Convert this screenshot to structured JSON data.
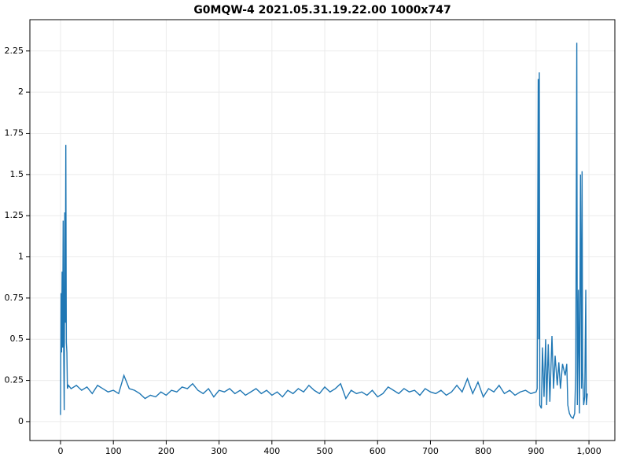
{
  "chart_data": {
    "type": "line",
    "title": "G0MQW-4 2021.05.31.19.22.00 1000x747",
    "x": [
      0,
      1,
      2,
      3,
      4,
      5,
      6,
      7,
      8,
      9,
      10,
      11,
      12,
      13,
      15,
      20,
      30,
      40,
      50,
      60,
      70,
      80,
      90,
      100,
      110,
      120,
      130,
      140,
      150,
      160,
      170,
      180,
      190,
      200,
      210,
      220,
      230,
      240,
      250,
      260,
      270,
      280,
      290,
      300,
      310,
      320,
      330,
      340,
      350,
      360,
      370,
      380,
      390,
      400,
      410,
      420,
      430,
      440,
      450,
      460,
      470,
      480,
      490,
      500,
      510,
      520,
      530,
      540,
      550,
      560,
      570,
      580,
      590,
      600,
      610,
      620,
      630,
      640,
      650,
      660,
      670,
      680,
      690,
      700,
      710,
      720,
      730,
      740,
      750,
      760,
      770,
      780,
      790,
      800,
      810,
      820,
      830,
      840,
      850,
      860,
      870,
      880,
      890,
      900,
      902,
      904,
      905,
      906,
      907,
      910,
      912,
      915,
      918,
      920,
      923,
      926,
      930,
      933,
      936,
      940,
      943,
      946,
      950,
      955,
      958,
      960,
      963,
      966,
      970,
      973,
      975,
      977,
      978,
      980,
      982,
      984,
      986,
      987,
      988,
      990,
      992,
      994,
      995,
      997
    ],
    "series": [
      {
        "color": "#1f77b4",
        "values": [
          0.04,
          0.78,
          0.42,
          0.91,
          0.45,
          1.22,
          0.42,
          0.07,
          1.27,
          0.6,
          1.68,
          0.48,
          0.42,
          0.2,
          0.22,
          0.2,
          0.22,
          0.19,
          0.21,
          0.17,
          0.22,
          0.2,
          0.18,
          0.19,
          0.17,
          0.28,
          0.2,
          0.19,
          0.17,
          0.14,
          0.16,
          0.15,
          0.18,
          0.16,
          0.19,
          0.18,
          0.21,
          0.2,
          0.23,
          0.19,
          0.17,
          0.2,
          0.15,
          0.19,
          0.18,
          0.2,
          0.17,
          0.19,
          0.16,
          0.18,
          0.2,
          0.17,
          0.19,
          0.16,
          0.18,
          0.15,
          0.19,
          0.17,
          0.2,
          0.18,
          0.22,
          0.19,
          0.17,
          0.21,
          0.18,
          0.2,
          0.23,
          0.14,
          0.19,
          0.17,
          0.18,
          0.16,
          0.19,
          0.15,
          0.17,
          0.21,
          0.19,
          0.17,
          0.2,
          0.18,
          0.19,
          0.16,
          0.2,
          0.18,
          0.17,
          0.19,
          0.16,
          0.18,
          0.22,
          0.18,
          0.26,
          0.17,
          0.24,
          0.15,
          0.2,
          0.18,
          0.22,
          0.17,
          0.19,
          0.16,
          0.18,
          0.19,
          0.17,
          0.18,
          0.2,
          2.08,
          0.5,
          2.12,
          0.1,
          0.08,
          0.45,
          0.15,
          0.5,
          0.1,
          0.47,
          0.12,
          0.52,
          0.2,
          0.4,
          0.22,
          0.36,
          0.2,
          0.35,
          0.28,
          0.35,
          0.1,
          0.05,
          0.03,
          0.02,
          0.05,
          0.3,
          2.3,
          0.1,
          0.8,
          0.05,
          1.5,
          0.2,
          1.52,
          0.3,
          0.1,
          0.15,
          0.8,
          0.1,
          0.17
        ]
      }
    ],
    "xlim": [
      -58,
      1049
    ],
    "ylim": [
      -0.115,
      2.44
    ],
    "xticks": [
      0,
      100,
      200,
      300,
      400,
      500,
      600,
      700,
      800,
      900,
      {
        "value": 1000,
        "label": "1,000"
      }
    ],
    "yticks": [
      0,
      0.25,
      0.5,
      0.75,
      1,
      1.25,
      1.5,
      1.75,
      2,
      2.25
    ],
    "grid": true
  }
}
